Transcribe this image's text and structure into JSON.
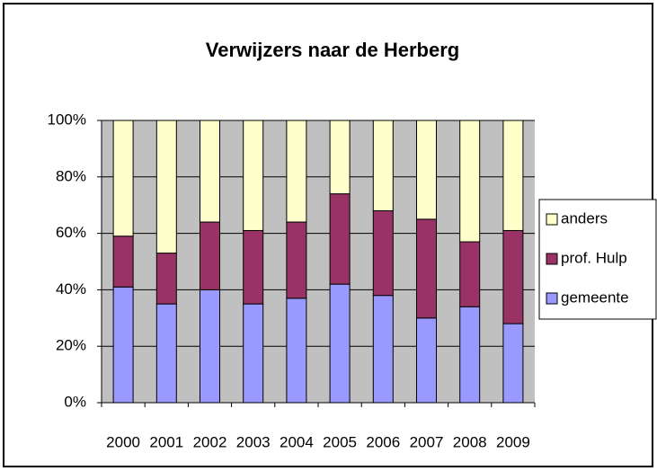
{
  "chart_data": {
    "type": "stacked_percent_bar",
    "title": "Verwijzers naar de Herberg",
    "categories": [
      "2000",
      "2001",
      "2002",
      "2003",
      "2004",
      "2005",
      "2006",
      "2007",
      "2008",
      "2009"
    ],
    "series": [
      {
        "name": "gemeente",
        "color": "#9999ff",
        "values": [
          41,
          35,
          40,
          35,
          37,
          42,
          38,
          30,
          34,
          28
        ]
      },
      {
        "name": "prof. Hulp",
        "color": "#993366",
        "values": [
          18,
          18,
          24,
          26,
          27,
          32,
          30,
          35,
          23,
          33
        ]
      },
      {
        "name": "anders",
        "color": "#ffffcc",
        "values": [
          41,
          47,
          36,
          39,
          36,
          26,
          32,
          35,
          43,
          39
        ]
      }
    ],
    "ylim": [
      0,
      100
    ],
    "yticks": [
      {
        "value": 0,
        "label": "0%"
      },
      {
        "value": 20,
        "label": "20%"
      },
      {
        "value": 40,
        "label": "40%"
      },
      {
        "value": 60,
        "label": "60%"
      },
      {
        "value": 80,
        "label": "80%"
      },
      {
        "value": 100,
        "label": "100%"
      }
    ],
    "grid": true
  }
}
